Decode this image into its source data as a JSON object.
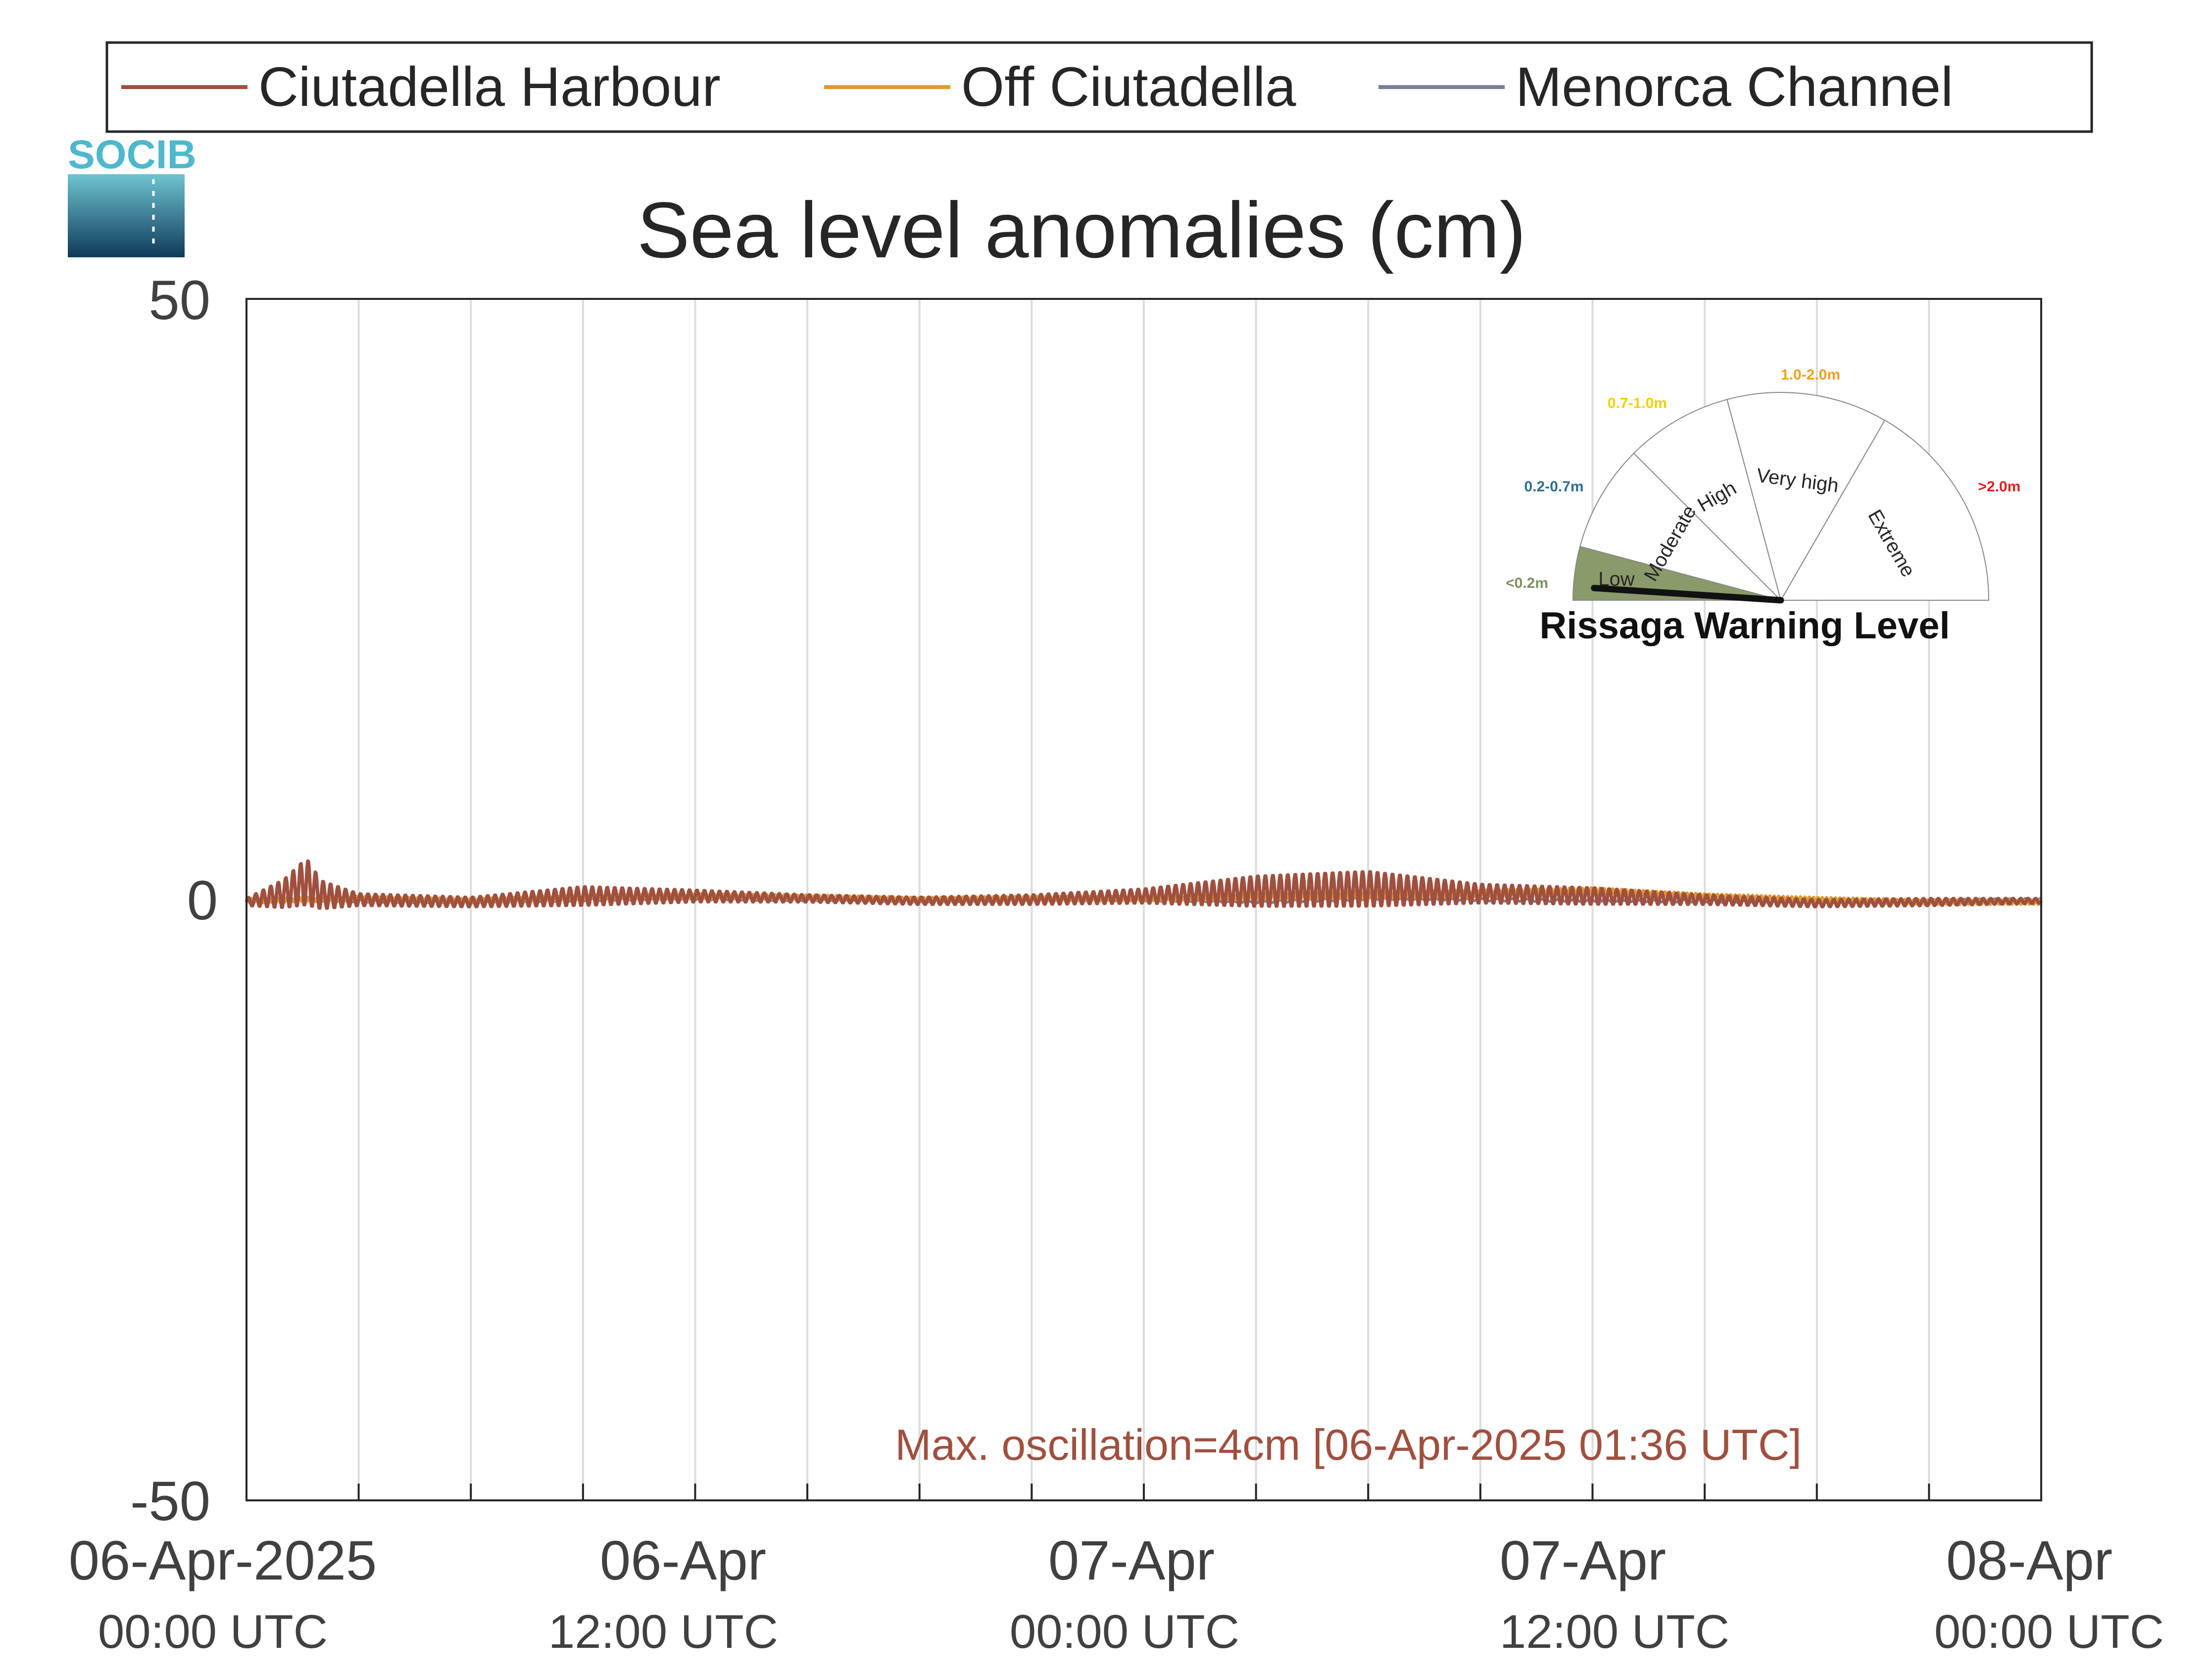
{
  "colors": {
    "ciutadella_harbour": "#a0503f",
    "off_ciutadella": "#e09a30",
    "menorca_channel": "#7a7f98",
    "annotation": "#a0503f",
    "gauge_low_fill": "#8a9a6a",
    "logo_text": "#4fb8cc"
  },
  "logo": {
    "text": "SOCIB"
  },
  "legend": {
    "position": "top",
    "items": [
      {
        "name": "Ciutadella Harbour"
      },
      {
        "name": "Off Ciutadella"
      },
      {
        "name": "Menorca Channel"
      }
    ]
  },
  "chart_data": {
    "type": "line",
    "title": "Sea level anomalies (cm)",
    "xlabel": "",
    "ylabel": "",
    "xlim": [
      "2025-04-06 00:00",
      "2025-04-08 00:00"
    ],
    "ylim": [
      -50,
      50
    ],
    "y_ticks": [
      50,
      0,
      -50
    ],
    "x_ticks": [
      {
        "line1": "06-Apr-2025",
        "line2": "00:00 UTC",
        "t": "2025-04-06 00:00"
      },
      {
        "line1": "06-Apr",
        "line2": "12:00 UTC",
        "t": "2025-04-06 12:00"
      },
      {
        "line1": "07-Apr",
        "line2": "00:00 UTC",
        "t": "2025-04-07 00:00"
      },
      {
        "line1": "07-Apr",
        "line2": "12:00 UTC",
        "t": "2025-04-07 12:00"
      },
      {
        "line1": "08-Apr",
        "line2": "00:00 UTC",
        "t": "2025-04-08 00:00"
      }
    ],
    "x_grid_every_hours": 3,
    "grid": "vertical",
    "series": [
      {
        "name": "Ciutadella Harbour",
        "x": [
          "2025-04-06 00:00",
          "2025-04-06 01:00",
          "2025-04-06 01:36",
          "2025-04-06 02:00",
          "2025-04-06 03:00",
          "2025-04-06 06:00",
          "2025-04-06 09:00",
          "2025-04-06 12:00",
          "2025-04-06 15:00",
          "2025-04-06 18:00",
          "2025-04-06 21:00",
          "2025-04-07 00:00",
          "2025-04-07 03:00",
          "2025-04-07 06:00",
          "2025-04-07 09:00",
          "2025-04-07 12:00",
          "2025-04-07 15:00",
          "2025-04-07 18:00",
          "2025-04-07 21:00",
          "2025-04-08 00:00"
        ],
        "y": [
          -0.2,
          0.5,
          1.5,
          0.4,
          0,
          -0.2,
          0.3,
          0.3,
          0.1,
          -0.1,
          0,
          0.3,
          0.7,
          0.9,
          0.5,
          0.3,
          0,
          -0.3,
          -0.2,
          -0.1
        ],
        "amplitude": [
          0.3,
          1.2,
          2.0,
          1.2,
          0.5,
          0.4,
          0.8,
          0.5,
          0.3,
          0.3,
          0.4,
          0.6,
          1.3,
          1.5,
          0.8,
          0.7,
          0.4,
          0.3,
          0.3,
          0.2
        ]
      },
      {
        "name": "Off Ciutadella",
        "x": [
          "2025-04-06 00:00",
          "2025-04-06 03:00",
          "2025-04-06 06:00",
          "2025-04-06 09:00",
          "2025-04-06 12:00",
          "2025-04-06 15:00",
          "2025-04-06 18:00",
          "2025-04-06 21:00",
          "2025-04-07 00:00",
          "2025-04-07 03:00",
          "2025-04-07 06:00",
          "2025-04-07 09:00",
          "2025-04-07 12:00",
          "2025-04-07 15:00",
          "2025-04-07 18:00",
          "2025-04-07 21:00",
          "2025-04-08 00:00"
        ],
        "y": [
          -0.1,
          0.1,
          -0.1,
          0.2,
          0.3,
          0.2,
          0,
          0.1,
          0.1,
          0.3,
          0.4,
          0.5,
          0.7,
          0.3,
          0,
          -0.2,
          -0.2
        ],
        "amplitude": [
          0.2,
          0.2,
          0.2,
          0.2,
          0.2,
          0.2,
          0.2,
          0.2,
          0.2,
          0.3,
          0.3,
          0.3,
          0.3,
          0.2,
          0.2,
          0.2,
          0.2
        ]
      },
      {
        "name": "Menorca Channel",
        "x": [
          "2025-04-06 00:00",
          "2025-04-06 03:00",
          "2025-04-06 06:00",
          "2025-04-06 09:00",
          "2025-04-06 12:00",
          "2025-04-06 15:00",
          "2025-04-06 18:00",
          "2025-04-06 21:00",
          "2025-04-07 00:00",
          "2025-04-07 03:00",
          "2025-04-07 06:00",
          "2025-04-07 09:00",
          "2025-04-07 12:00",
          "2025-04-07 15:00",
          "2025-04-07 18:00",
          "2025-04-07 21:00",
          "2025-04-08 00:00"
        ],
        "y": [
          0,
          -0.1,
          -0.2,
          0,
          0.1,
          0,
          -0.1,
          0,
          0,
          -0.2,
          0.1,
          0,
          -0.1,
          -0.1,
          -0.2,
          -0.1,
          0
        ],
        "amplitude": [
          0.1,
          0.1,
          0.1,
          0.1,
          0.1,
          0.1,
          0.1,
          0.1,
          0.1,
          0.1,
          0.1,
          0.1,
          0.1,
          0.1,
          0.1,
          0.1,
          0.1
        ]
      }
    ],
    "annotations": [
      {
        "text": "Max. oscillation=4cm [06-Apr-2025 01:36 UTC]"
      }
    ]
  },
  "gauge": {
    "title": "Rissaga Warning Level",
    "current_level": "Low",
    "needle_value_m": 0.05,
    "segments": [
      {
        "label": "Low",
        "range": "<0.2m",
        "color": "#7f8f5f"
      },
      {
        "label": "Moderate",
        "range": "0.2-0.7m",
        "color": "#2f6f8f"
      },
      {
        "label": "High",
        "range": "0.7-1.0m",
        "color": "#f0d000"
      },
      {
        "label": "Very high",
        "range": "1.0-2.0m",
        "color": "#f0a020"
      },
      {
        "label": "Extreme",
        "range": ">2.0m",
        "color": "#e02020"
      }
    ]
  }
}
